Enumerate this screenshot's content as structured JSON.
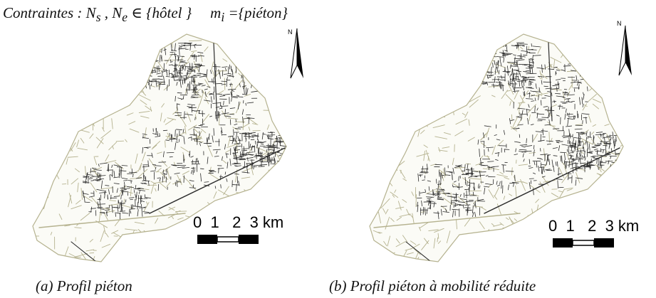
{
  "constraints": {
    "prefix": "Contraintes : N",
    "ns_sub": "s",
    "mid1": " , N",
    "ne_sub": "e",
    "set_nodes": " ∈ {hôtel }",
    "mode_m": "m",
    "mode_sub": "i",
    "set_modes": " ={piéton}"
  },
  "panels": [
    {
      "caption": "(a)  Profil piéton",
      "north_label": "N",
      "scale": {
        "ticks": [
          "0",
          "1",
          "2",
          "3 km"
        ]
      }
    },
    {
      "caption": "(b)  Profil piéton à mobilité réduite",
      "north_label": "N",
      "scale": {
        "ticks": [
          "0",
          "1",
          "2",
          "3 km"
        ]
      }
    }
  ],
  "colors": {
    "road_minor": "#b5b28f",
    "road_major": "#2b2b2b",
    "text": "#111111"
  },
  "icons": [
    "north-arrow-icon",
    "scale-bar"
  ]
}
